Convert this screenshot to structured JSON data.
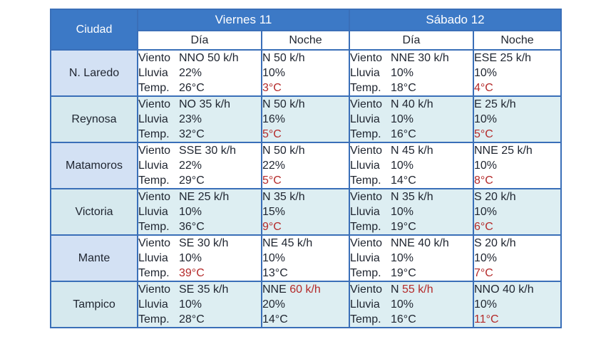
{
  "header": {
    "city_label": "Ciudad",
    "days": [
      "Viernes 11",
      "Sábado 12"
    ],
    "sub": [
      "Día",
      "Noche",
      "Día",
      "Noche"
    ]
  },
  "labels": {
    "wind": "Viento",
    "rain": "Lluvia",
    "temp": "Temp."
  },
  "colors": {
    "header_blue": "#3c79c6",
    "grid": "#3a6fb8",
    "highlight_red": "#b42a2a",
    "row_alt": "#ddeef2"
  },
  "rows": [
    {
      "city": "N. Laredo",
      "fri_day": {
        "wind": "NNO 50 k/h",
        "rain": "22%",
        "temp": "26°C"
      },
      "fri_night": {
        "wind": "N 50 k/h",
        "rain": "10%",
        "temp": "3°C"
      },
      "sat_day": {
        "wind": "NNE 30 k/h",
        "rain": "10%",
        "temp": "18°C"
      },
      "sat_night": {
        "wind": "ESE 25 k/h",
        "rain": "10%",
        "temp": "4°C"
      }
    },
    {
      "city": "Reynosa",
      "fri_day": {
        "wind": "NO 35 k/h",
        "rain": "23%",
        "temp": "32°C"
      },
      "fri_night": {
        "wind": "N 50 k/h",
        "rain": "16%",
        "temp": "5°C"
      },
      "sat_day": {
        "wind": "N 40 k/h",
        "rain": "10%",
        "temp": "16°C"
      },
      "sat_night": {
        "wind": "E 25 k/h",
        "rain": "10%",
        "temp": "5°C"
      }
    },
    {
      "city": "Matamoros",
      "fri_day": {
        "wind": "SSE 30 k/h",
        "rain": "22%",
        "temp": "29°C"
      },
      "fri_night": {
        "wind": "N 50 k/h",
        "rain": "22%",
        "temp": "5°C"
      },
      "sat_day": {
        "wind": "N 45 k/h",
        "rain": "10%",
        "temp": "14°C"
      },
      "sat_night": {
        "wind": "NNE 25 k/h",
        "rain": "10%",
        "temp": "8°C"
      }
    },
    {
      "city": "Victoria",
      "fri_day": {
        "wind": "NE 25 k/h",
        "rain": "10%",
        "temp": "36°C"
      },
      "fri_night": {
        "wind": "N 35 k/h",
        "rain": "15%",
        "temp": "9°C"
      },
      "sat_day": {
        "wind": "N 35 k/h",
        "rain": "10%",
        "temp": "19°C"
      },
      "sat_night": {
        "wind": "S 20 k/h",
        "rain": "10%",
        "temp": "6°C"
      }
    },
    {
      "city": "Mante",
      "fri_day": {
        "wind": "SE 30 k/h",
        "rain": "10%",
        "temp": "39°C"
      },
      "fri_night": {
        "wind": "NE 45 k/h",
        "rain": "10%",
        "temp": "13°C"
      },
      "sat_day": {
        "wind": "NNE 40 k/h",
        "rain": "10%",
        "temp": "19°C"
      },
      "sat_night": {
        "wind": "S 20 k/h",
        "rain": "10%",
        "temp": "7°C"
      }
    },
    {
      "city": "Tampico",
      "fri_day": {
        "wind": "SE 35 k/h",
        "rain": "10%",
        "temp": "28°C"
      },
      "fri_night": {
        "wind_dir": "NNE",
        "wind_speed": "60 k/h",
        "rain": "20%",
        "temp": "14°C"
      },
      "sat_day": {
        "wind_dir": "N",
        "wind_speed": "55 k/h",
        "rain": "10%",
        "temp": "16°C"
      },
      "sat_night": {
        "wind": "NNO 40 k/h",
        "rain": "10%",
        "temp": "11°C"
      }
    }
  ]
}
